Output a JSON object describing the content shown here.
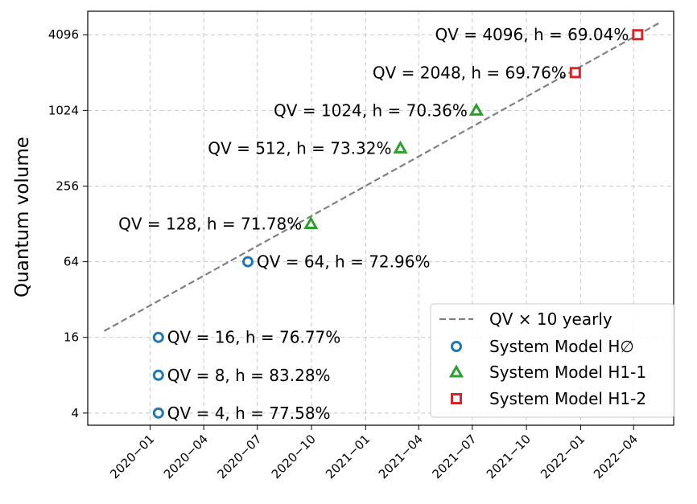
{
  "chart_data": {
    "type": "scatter",
    "title": "",
    "xlabel": "",
    "ylabel": "Quantum volume",
    "yscale": "log2",
    "ylim": [
      3.2,
      6300
    ],
    "xlim": [
      "2019-09-17",
      "2022-06-08"
    ],
    "grid": true,
    "yticks": [
      4,
      16,
      64,
      256,
      1024,
      4096
    ],
    "ytick_labels": [
      "4",
      "16",
      "64",
      "256",
      "1024",
      "4096"
    ],
    "xticks": [
      "2020-01-01",
      "2020-04-01",
      "2020-07-01",
      "2020-10-01",
      "2021-01-01",
      "2021-04-01",
      "2021-07-01",
      "2021-10-01",
      "2022-01-01",
      "2022-04-01"
    ],
    "xtick_labels": [
      "2020-01",
      "2020-04",
      "2020-07",
      "2020-10",
      "2021-01",
      "2021-04",
      "2021-07",
      "2021-10",
      "2022-01",
      "2022-04"
    ],
    "trend": {
      "name": "QV × 10 yearly",
      "start": {
        "date": "2019-10-15",
        "qv": 18
      },
      "end": {
        "date": "2022-05-15",
        "qv": 5100
      },
      "color": "#808080"
    },
    "series": [
      {
        "name": "System Model H∅",
        "marker": "circle",
        "color": "#1f77b4",
        "points": [
          {
            "date": "2020-01-15",
            "qv": 4,
            "label": "QV = 4, h = 77.58%",
            "label_side": "right"
          },
          {
            "date": "2020-01-15",
            "qv": 8,
            "label": "QV = 8, h = 83.28%",
            "label_side": "right"
          },
          {
            "date": "2020-01-15",
            "qv": 16,
            "label": "QV = 16, h = 76.77%",
            "label_side": "right"
          },
          {
            "date": "2020-06-15",
            "qv": 64,
            "label": "QV = 64, h = 72.96%",
            "label_side": "right"
          }
        ]
      },
      {
        "name": "System Model H1-1",
        "marker": "triangle",
        "color": "#2ca02c",
        "points": [
          {
            "date": "2020-09-30",
            "qv": 128,
            "label": "QV = 128, h = 71.78%",
            "label_side": "left"
          },
          {
            "date": "2021-03-01",
            "qv": 512,
            "label": "QV = 512, h = 73.32%",
            "label_side": "left"
          },
          {
            "date": "2021-07-08",
            "qv": 1024,
            "label": "QV = 1024, h = 70.36%",
            "label_side": "left"
          }
        ]
      },
      {
        "name": "System Model H1-2",
        "marker": "square",
        "color": "#d62728",
        "points": [
          {
            "date": "2021-12-23",
            "qv": 2048,
            "label": "QV = 2048, h = 69.76%",
            "label_side": "left"
          },
          {
            "date": "2022-04-08",
            "qv": 4096,
            "label": "QV = 4096, h = 69.04%",
            "label_side": "left"
          }
        ]
      }
    ],
    "legend": {
      "position": "lower-right",
      "entries": [
        "QV × 10 yearly",
        "System Model H∅",
        "System Model H1-1",
        "System Model H1-2"
      ]
    }
  }
}
